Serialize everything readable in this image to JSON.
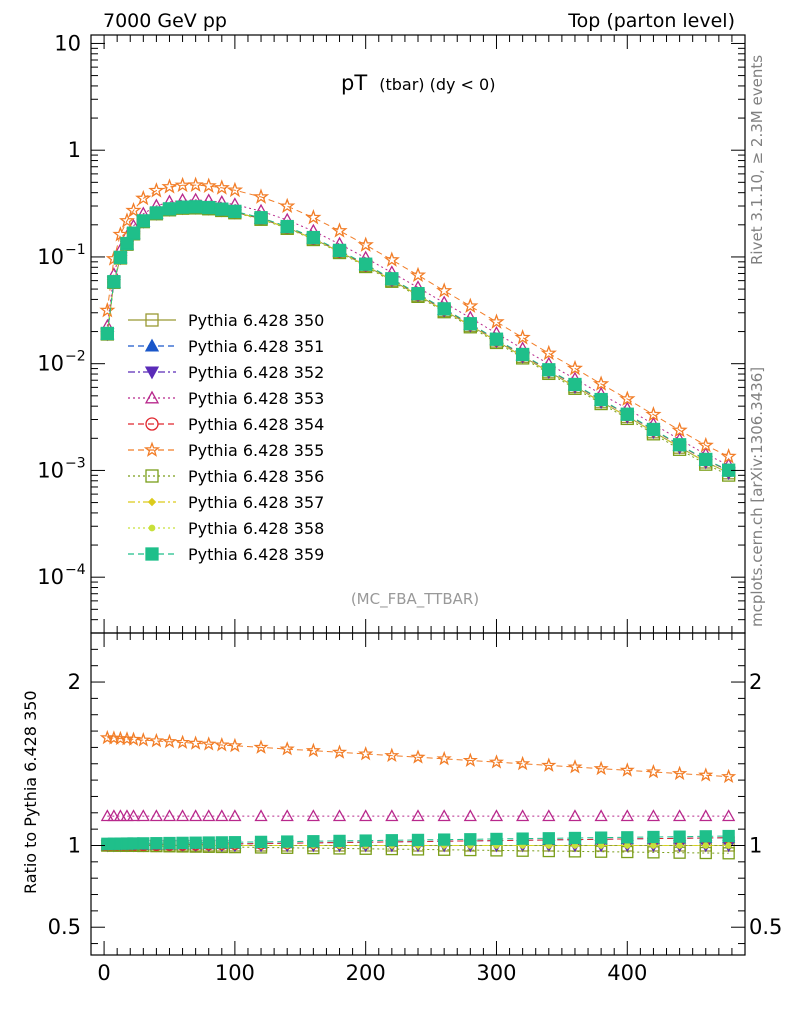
{
  "header": {
    "left": "7000 GeV pp",
    "right": "Top (parton level)"
  },
  "plot_title": {
    "main": "pT",
    "sub": "(tbar) (dy < 0)"
  },
  "analysis_label": "(MC_FBA_TTBAR)",
  "side_labels": {
    "top": "Rivet 3.1.10, ≥ 2.3M events",
    "bottom": "mcplots.cern.ch [arXiv:1306.3436]"
  },
  "ratio_ylabel": "Ratio to Pythia 6.428 350",
  "chart_data": {
    "type": "line",
    "x_range": [
      -10,
      490
    ],
    "main_panel": {
      "yscale": "log",
      "ylim": [
        3e-05,
        12
      ],
      "y_ticks": [
        {
          "value": 10,
          "label": "10"
        },
        {
          "value": 1,
          "label": "1"
        },
        {
          "value": 0.1,
          "base": "10",
          "exp": "−1"
        },
        {
          "value": 0.01,
          "base": "10",
          "exp": "−2"
        },
        {
          "value": 0.001,
          "base": "10",
          "exp": "−3"
        },
        {
          "value": 0.0001,
          "base": "10",
          "exp": "−4"
        }
      ]
    },
    "ratio_panel": {
      "ylim": [
        0.33,
        2.3
      ],
      "y_ticks": [
        {
          "value": 2,
          "label": "2"
        },
        {
          "value": 1,
          "label": "1"
        },
        {
          "value": 0.5,
          "label": "0.5"
        }
      ]
    },
    "x_ticks": [
      {
        "value": 0,
        "label": "0"
      },
      {
        "value": 100,
        "label": "100"
      },
      {
        "value": 200,
        "label": "200"
      },
      {
        "value": 300,
        "label": "300"
      },
      {
        "value": 400,
        "label": "400"
      }
    ],
    "reference_x": [
      2.5,
      7.5,
      12.5,
      17.5,
      22.5,
      30,
      40,
      50,
      60,
      70,
      80,
      90,
      100,
      120,
      140,
      160,
      180,
      200,
      220,
      240,
      260,
      280,
      300,
      320,
      340,
      360,
      380,
      400,
      420,
      440,
      460,
      477.5
    ],
    "reference_y": [
      0.019,
      0.058,
      0.098,
      0.132,
      0.165,
      0.215,
      0.255,
      0.278,
      0.288,
      0.29,
      0.285,
      0.275,
      0.262,
      0.228,
      0.188,
      0.148,
      0.112,
      0.083,
      0.0605,
      0.0438,
      0.0315,
      0.0228,
      0.0163,
      0.0117,
      0.0084,
      0.0061,
      0.0044,
      0.0032,
      0.0023,
      0.00165,
      0.0012,
      0.00095
    ],
    "series": [
      {
        "name": "Pythia 6.428 350",
        "color": "#999933",
        "marker": "open-square",
        "dash": "solid",
        "scale": 1.0,
        "slope": 0.0,
        "ratio_values": [
          1.0,
          1.0
        ]
      },
      {
        "name": "Pythia 6.428 351",
        "color": "#1a57c9",
        "marker": "filled-triangle-up",
        "dash": "dashed",
        "scale": 1.0,
        "slope": 0.0001,
        "ratio_values": [
          1.0,
          1.05
        ]
      },
      {
        "name": "Pythia 6.428 352",
        "color": "#5a2bb8",
        "marker": "filled-triangle-down",
        "dash": "dash-dot",
        "scale": 1.0,
        "slope": 0.0,
        "ratio_values": [
          1.0,
          1.0
        ]
      },
      {
        "name": "Pythia 6.428 353",
        "color": "#b8288c",
        "marker": "open-triangle-up",
        "dash": "dotted",
        "scale": 1.18,
        "slope": 0.0,
        "ratio_values": [
          1.18,
          1.2
        ]
      },
      {
        "name": "Pythia 6.428 354",
        "color": "#e0262d",
        "marker": "open-circle",
        "dash": "dashed",
        "scale": 1.0,
        "slope": 0.0001,
        "ratio_values": [
          1.0,
          1.05
        ]
      },
      {
        "name": "Pythia 6.428 355",
        "color": "#f27d27",
        "marker": "open-star",
        "dash": "dashed",
        "scale": 1.66,
        "slope": -0.0005,
        "ratio_values": [
          1.66,
          1.42
        ]
      },
      {
        "name": "Pythia 6.428 356",
        "color": "#7a9e19",
        "marker": "open-square",
        "dash": "dotted",
        "scale": 1.0,
        "slope": -0.0001,
        "ratio_values": [
          1.0,
          0.95
        ]
      },
      {
        "name": "Pythia 6.428 357",
        "color": "#dccb1b",
        "marker": "filled-diamond-small",
        "dash": "dash-dot",
        "scale": 1.0,
        "slope": 0.0,
        "ratio_values": [
          1.0,
          1.0
        ]
      },
      {
        "name": "Pythia 6.428 358",
        "color": "#c8e03a",
        "marker": "filled-dot",
        "dash": "dotted",
        "scale": 1.0,
        "slope": 0.0,
        "ratio_values": [
          1.0,
          1.0
        ]
      },
      {
        "name": "Pythia 6.428 359",
        "color": "#1fbf8a",
        "marker": "filled-square",
        "dash": "dashed",
        "scale": 1.01,
        "slope": 0.0001,
        "ratio_values": [
          1.01,
          1.05
        ]
      }
    ]
  }
}
